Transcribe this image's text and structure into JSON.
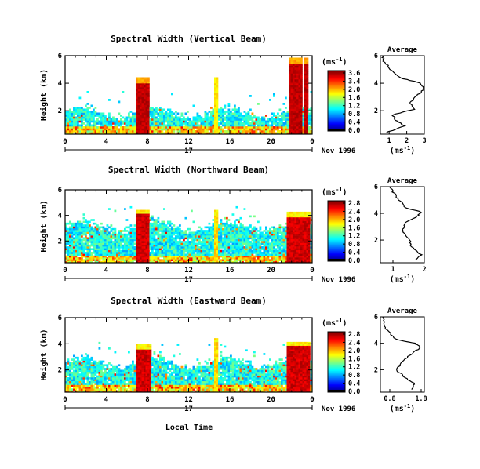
{
  "figure": {
    "xaxis_label": "Local Time",
    "day_label": "17",
    "date_label": "Nov 1996",
    "ylabel": "Height (km)",
    "colorbar_unit_base": "(ms",
    "colorbar_unit_exp": "-1",
    "colorbar_unit_close": ")",
    "average_title": "Average"
  },
  "chart_data": [
    {
      "type": "heatmap",
      "title": "Spectral Width (Vertical Beam)",
      "x_ticks": [
        "0",
        "4",
        "8",
        "12",
        "16",
        "20",
        "0"
      ],
      "y_ticks": [
        "6",
        "4",
        "2"
      ],
      "xlim": [
        0,
        24
      ],
      "ylim": [
        0.3,
        6
      ],
      "colorbar_ticks": [
        "3.6",
        "3.4",
        "2.0",
        "1.6",
        "1.2",
        "0.8",
        "0.4",
        "0.0"
      ],
      "colorbar_range": [
        0,
        3.6
      ],
      "features": {
        "background_top_km": 1.9,
        "columns": [
          {
            "from": 6.8,
            "to": 8.2,
            "top_km": 4.4,
            "value": 3.5
          },
          {
            "from": 21.7,
            "to": 23.0,
            "top_km": 5.8,
            "value": 3.5
          },
          {
            "from": 23.3,
            "to": 23.7,
            "top_km": 5.8,
            "value": 3.5
          }
        ],
        "spike_hour": 14.7
      },
      "average": {
        "xlim": [
          0.5,
          3
        ],
        "x_ticks": [
          "1",
          "2",
          "3"
        ],
        "y_ticks": [
          "6",
          "4",
          "2"
        ],
        "unit": "(ms-1)",
        "profile": [
          [
            0.8,
            0.4
          ],
          [
            1.9,
            0.9
          ],
          [
            1.4,
            1.3
          ],
          [
            1.2,
            1.7
          ],
          [
            2.4,
            2.1
          ],
          [
            2.2,
            2.6
          ],
          [
            2.6,
            3.1
          ],
          [
            3.0,
            3.6
          ],
          [
            2.8,
            4.0
          ],
          [
            1.6,
            4.4
          ],
          [
            1.1,
            5.0
          ],
          [
            0.7,
            5.6
          ],
          [
            0.6,
            6.0
          ]
        ]
      }
    },
    {
      "type": "heatmap",
      "title": "Spectral Width (Northward Beam)",
      "x_ticks": [
        "0",
        "4",
        "8",
        "12",
        "16",
        "20",
        "0"
      ],
      "y_ticks": [
        "6",
        "4",
        "2"
      ],
      "xlim": [
        0,
        24
      ],
      "ylim": [
        0.3,
        6
      ],
      "colorbar_ticks": [
        "2.8",
        "2.4",
        "2.0",
        "1.6",
        "1.2",
        "0.8",
        "0.4",
        "0.0"
      ],
      "colorbar_range": [
        0,
        2.8
      ],
      "features": {
        "background_top_km": 3.2,
        "columns": [
          {
            "from": 6.9,
            "to": 8.1,
            "top_km": 4.5,
            "value": 2.7
          },
          {
            "from": 21.6,
            "to": 23.8,
            "top_km": 4.3,
            "value": 2.7
          }
        ],
        "spike_hour": 14.7
      },
      "average": {
        "xlim": [
          0.6,
          2
        ],
        "x_ticks": [
          "1",
          "2"
        ],
        "y_ticks": [
          "6",
          "4",
          "2"
        ],
        "unit": "(ms-1)",
        "profile": [
          [
            1.7,
            0.5
          ],
          [
            1.9,
            0.9
          ],
          [
            1.6,
            1.5
          ],
          [
            1.5,
            2.1
          ],
          [
            1.3,
            2.7
          ],
          [
            1.4,
            3.3
          ],
          [
            1.8,
            3.8
          ],
          [
            1.9,
            4.1
          ],
          [
            1.4,
            4.4
          ],
          [
            1.2,
            5.0
          ],
          [
            1.0,
            5.6
          ],
          [
            0.9,
            6.0
          ]
        ]
      }
    },
    {
      "type": "heatmap",
      "title": "Spectral Width (Eastward Beam)",
      "x_ticks": [
        "0",
        "4",
        "8",
        "12",
        "16",
        "20",
        "0"
      ],
      "y_ticks": [
        "6",
        "4",
        "2"
      ],
      "xlim": [
        0,
        24
      ],
      "ylim": [
        0.3,
        6
      ],
      "colorbar_ticks": [
        "2.8",
        "2.4",
        "2.0",
        "1.6",
        "1.2",
        "0.8",
        "0.4",
        "0.0"
      ],
      "colorbar_range": [
        0,
        2.8
      ],
      "features": {
        "background_top_km": 2.6,
        "columns": [
          {
            "from": 6.8,
            "to": 8.3,
            "top_km": 4.0,
            "value": 2.7
          },
          {
            "from": 21.6,
            "to": 23.8,
            "top_km": 4.2,
            "value": 2.7
          }
        ],
        "spike_hour": 14.7
      },
      "average": {
        "xlim": [
          0.5,
          1.9
        ],
        "x_ticks": [
          "0.8",
          "1.8"
        ],
        "y_ticks": [
          "6",
          "4",
          "2"
        ],
        "unit": "(ms-1)",
        "profile": [
          [
            1.5,
            0.5
          ],
          [
            1.6,
            0.9
          ],
          [
            1.3,
            1.4
          ],
          [
            1.0,
            2.0
          ],
          [
            1.2,
            2.6
          ],
          [
            1.5,
            3.2
          ],
          [
            1.8,
            3.7
          ],
          [
            1.6,
            4.0
          ],
          [
            1.0,
            4.3
          ],
          [
            0.7,
            5.0
          ],
          [
            0.6,
            5.6
          ],
          [
            0.6,
            6.0
          ]
        ]
      }
    }
  ]
}
